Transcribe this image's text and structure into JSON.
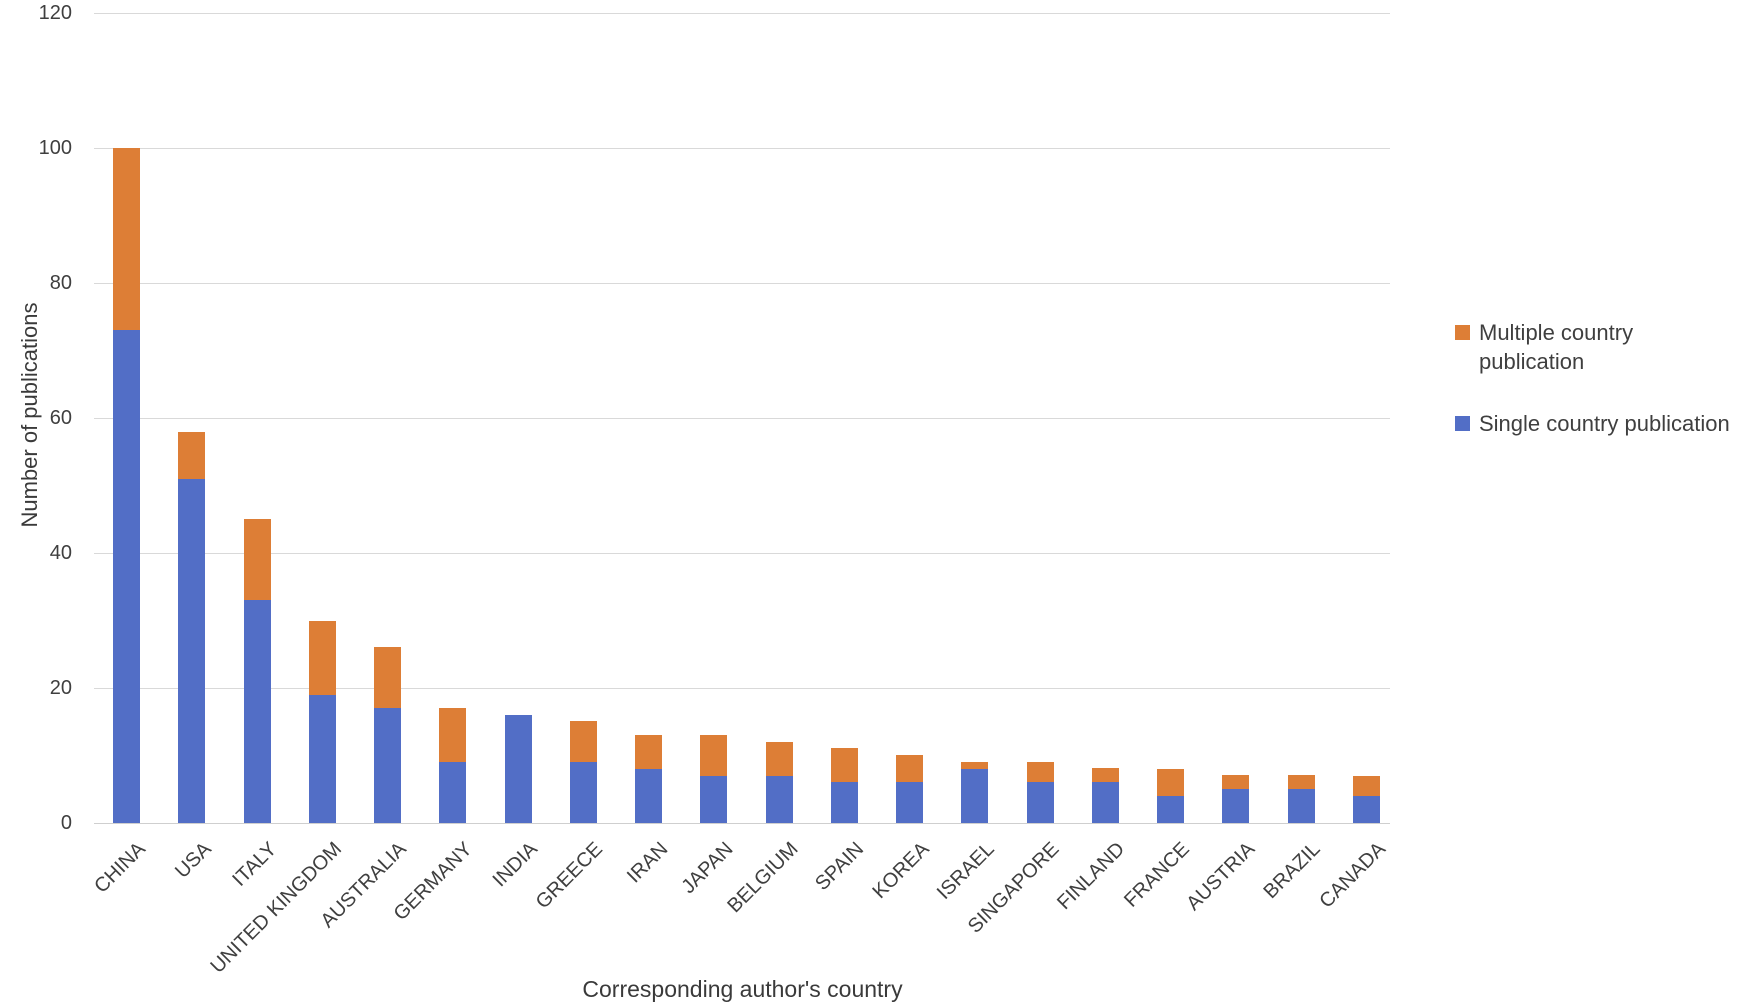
{
  "figure": {
    "background": "#ffffff",
    "text_color": "#3f3f3f",
    "gridline_color": "#d9d9d9"
  },
  "chart_data": {
    "type": "bar",
    "stacked": true,
    "title": "",
    "xlabel": "Corresponding author's country",
    "ylabel": "Number of publications",
    "ylim": [
      0,
      120
    ],
    "yticks": [
      0,
      20,
      40,
      60,
      80,
      100,
      120
    ],
    "grid": "horizontal",
    "legend_position": "right",
    "categories": [
      "CHINA",
      "USA",
      "ITALY",
      "UNITED KINGDOM",
      "AUSTRALIA",
      "GERMANY",
      "INDIA",
      "GREECE",
      "IRAN",
      "JAPAN",
      "BELGIUM",
      "SPAIN",
      "KOREA",
      "ISRAEL",
      "SINGAPORE",
      "FINLAND",
      "FRANCE",
      "AUSTRIA",
      "BRAZIL",
      "CANADA"
    ],
    "series": [
      {
        "name": "Single country publication",
        "color": "#526ec6",
        "values": [
          73,
          51,
          33,
          19,
          17,
          9,
          16,
          9,
          8,
          7,
          7,
          6,
          6,
          8,
          6,
          6,
          4,
          5,
          5,
          4
        ]
      },
      {
        "name": "Multiple country publication",
        "color": "#dd7e36",
        "values": [
          27,
          7,
          12,
          11,
          9,
          8,
          0,
          6,
          5,
          6,
          5,
          5,
          4,
          1,
          3,
          2,
          4,
          2,
          2,
          3
        ]
      }
    ],
    "totals": [
      100,
      58,
      45,
      30,
      26,
      17,
      16,
      15,
      13,
      13,
      12,
      11,
      10,
      9,
      9,
      8,
      8,
      7,
      7,
      7
    ],
    "legend": {
      "items": [
        {
          "label": "Multiple country publication",
          "color": "#dd7e36"
        },
        {
          "label": "Single country publication",
          "color": "#526ec6"
        }
      ]
    }
  }
}
